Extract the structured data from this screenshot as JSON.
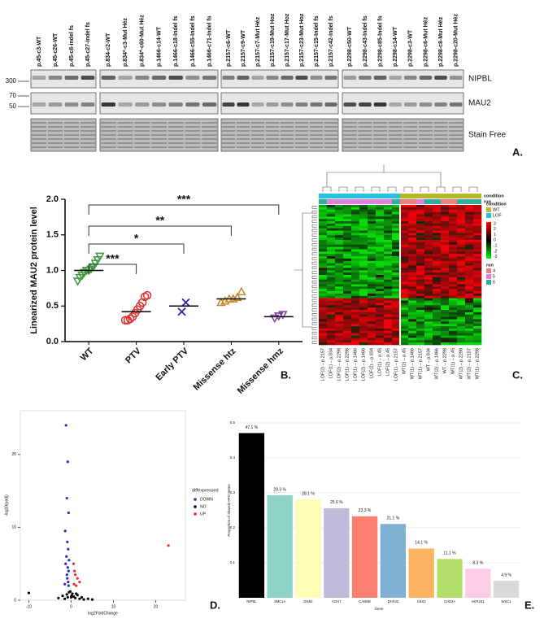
{
  "blot": {
    "panel_label": "A.",
    "bands": [
      "NIPBL",
      "MAU2",
      "Stain Free"
    ],
    "markers": [
      "300",
      "70",
      "50"
    ],
    "groups": [
      [
        "p.45-c3-WT",
        "p.45-c26-WT",
        "p.45-c8-indel fs",
        "p.45-c27-indel fs"
      ],
      [
        "p.834-c2-WT",
        "p.834*-c3-Mut Héz",
        "p.834*-c60-Mut Héz",
        "p.1466-c14-WT",
        "p.1466-c18-Indel fs",
        "p.1466-c55-Indel fs",
        "p.1466-c71-Indel fs"
      ],
      [
        "p.2157-c6-WT",
        "p.2157-c9-WT",
        "p.2157-c7-Mut Héz",
        "p.2157-c19-Mut Hoz",
        "p.2157-c17-Mut Hoz",
        "p.2157-c23-Mut Hoz",
        "p.2157-c15-Indel fs",
        "p.2157-c42-Indel fs"
      ],
      [
        "p.2298-c50-WT",
        "p.2298-c43-Indel fs",
        "p.2298-c85-Indel fs",
        "p.2298-c14-WT",
        "p.2298-c3-WT",
        "p.2298-c6-Mut Héz",
        "p.2298-c8-Mut Héz",
        "p.2298-c20-Mut Héz"
      ]
    ]
  },
  "heatmap": {
    "panel_label": "C.",
    "columns": [
      "LOF(2) – p.2157",
      "LOF(1) – p.834",
      "LOF(2) – p.2298",
      "LOF(1) – p.2298",
      "LOF(1) – p.1466",
      "LOF(2) – p.1466",
      "LOF(2) – p.834",
      "LOF(1) – p.45",
      "LOF(2) – p.45",
      "LOF(1) – p.2157",
      "WT(2) – p.45",
      "WT(1) – p.1466",
      "WT(1) – p.2157",
      "WT – p.834",
      "WT(2) – p.1466",
      "WT – p.2298",
      "WT(1) – p.45",
      "WT(2) – p.2298",
      "WT(2) – p.2157",
      "WT(1) – p.2298"
    ],
    "track_labels": [
      "condition",
      "run"
    ],
    "legend_condition_title": "condition",
    "condition_levels": [
      {
        "name": "WT",
        "color": "#b5b82a"
      },
      {
        "name": "LOF",
        "color": "#29c0e6"
      }
    ],
    "legend_run_title": "run",
    "run_levels": [
      {
        "name": "4",
        "color": "#f08080"
      },
      {
        "name": "5",
        "color": "#e080e0"
      },
      {
        "name": "6",
        "color": "#30b0a0"
      }
    ],
    "scale_labels": [
      "3",
      "2",
      "1",
      "0",
      "-1",
      "-2",
      "-3"
    ]
  },
  "chart_data": [
    {
      "type": "dot",
      "panel_label": "B.",
      "ylabel": "Linearized MAU2 protein level",
      "categories": [
        "WT",
        "PTV",
        "Early PTV",
        "Missense htz",
        "Missense hmz"
      ],
      "colors": [
        "#3a9a3a",
        "#e03030",
        "#2a2aa0",
        "#c8862a",
        "#7a3aa0"
      ],
      "markers": [
        "triangle-down",
        "circle",
        "x",
        "triangle-up",
        "triangle-down"
      ],
      "points": [
        [
          0.85,
          0.9,
          0.93,
          0.97,
          1.0,
          1.0,
          1.02,
          1.05,
          1.1,
          1.15,
          1.2
        ],
        [
          0.3,
          0.3,
          0.32,
          0.35,
          0.4,
          0.45,
          0.5,
          0.55,
          0.63,
          0.65
        ],
        [
          0.42,
          0.55
        ],
        [
          0.55,
          0.57,
          0.6,
          0.6,
          0.62,
          0.7
        ],
        [
          0.33,
          0.36,
          0.38
        ]
      ],
      "means": [
        1.0,
        0.42,
        0.5,
        0.6,
        0.35
      ],
      "significance": [
        "***",
        "*",
        "**",
        "***"
      ],
      "ylim": [
        0,
        2
      ],
      "yticks": [
        {
          "value": 0,
          "label": "0.0"
        },
        {
          "value": 0.5,
          "label": "0.5"
        },
        {
          "value": 1,
          "label": "1.0"
        },
        {
          "value": 1.5,
          "label": "1.5"
        },
        {
          "value": 2,
          "label": "2.0"
        }
      ]
    },
    {
      "type": "scatter",
      "panel_label": "D.",
      "xlabel": "log2FoldChange",
      "ylabel": "-log10(padj)",
      "legend_title": "diffexpressed",
      "series": [
        {
          "name": "DOWN",
          "color": "#2a2ad0",
          "x": [
            -1.2,
            -0.8,
            -1.0,
            -0.6,
            -1.4,
            -0.9,
            -0.7,
            -1.1,
            -0.5,
            -1.3,
            -0.8,
            -0.6,
            -1.0,
            -0.9,
            -0.7,
            -1.5,
            -0.6
          ],
          "values": [
            24,
            19,
            14,
            12,
            9.5,
            8,
            7,
            6,
            5.5,
            5,
            4.5,
            4,
            3.5,
            3,
            2.5,
            2.2,
            2
          ]
        },
        {
          "name": "NO",
          "color": "#000000",
          "x": [
            -10,
            -3,
            -2,
            -1.5,
            -1,
            -0.5,
            0,
            0.3,
            0.6,
            1,
            1.5,
            2,
            2.5,
            3,
            4,
            5,
            -0.2,
            0.1,
            -0.8,
            1.2
          ],
          "values": [
            1,
            0.3,
            0.6,
            0.2,
            0.8,
            1.1,
            0.4,
            0.9,
            0.5,
            0.3,
            0.7,
            0.2,
            0.4,
            0.1,
            0.2,
            0.1,
            1.2,
            0.6,
            0.4,
            0.9
          ]
        },
        {
          "name": "UP",
          "color": "#e03030",
          "x": [
            0.6,
            0.8,
            1.0,
            1.5,
            2.0,
            0.7,
            1.2,
            23
          ],
          "values": [
            5,
            4,
            3.5,
            3,
            2.5,
            2.2,
            2,
            7.5
          ]
        }
      ],
      "xlim": [
        -12,
        27
      ],
      "xticks": [
        -10,
        0,
        10,
        20
      ],
      "ylim": [
        0,
        26
      ],
      "yticks": [
        0,
        10,
        20
      ]
    },
    {
      "type": "bar",
      "panel_label": "E.",
      "xlabel": "Gene",
      "ylabel": "Proportion of shared HPO terms",
      "categories": [
        "NIPBL",
        "SMC1A",
        "GNB1",
        "CDH7",
        "CABNB",
        "DHX32",
        "CBX2",
        "CHD2A",
        "AKR1E1",
        "WSC1"
      ],
      "values": [
        0.471,
        0.293,
        0.281,
        0.256,
        0.233,
        0.211,
        0.141,
        0.111,
        0.083,
        0.049
      ],
      "value_labels": [
        "47.1 %",
        "29.3 %",
        "28.1 %",
        "25.6 %",
        "23.3 %",
        "21.1 %",
        "14.1 %",
        "11.1 %",
        "8.3 %",
        "4.9 %"
      ],
      "colors": [
        "#000000",
        "#8dd3c7",
        "#ffffb3",
        "#bebada",
        "#fb8072",
        "#80b1d3",
        "#fdb462",
        "#b3de69",
        "#fccde5",
        "#d9d9d9"
      ],
      "ylim": [
        0,
        0.5
      ],
      "yticks": [
        {
          "value": 0.1,
          "label": "0.1"
        },
        {
          "value": 0.2,
          "label": "0.2"
        },
        {
          "value": 0.3,
          "label": "0.3"
        },
        {
          "value": 0.4,
          "label": "0.4"
        },
        {
          "value": 0.5,
          "label": "0.5"
        }
      ]
    }
  ]
}
